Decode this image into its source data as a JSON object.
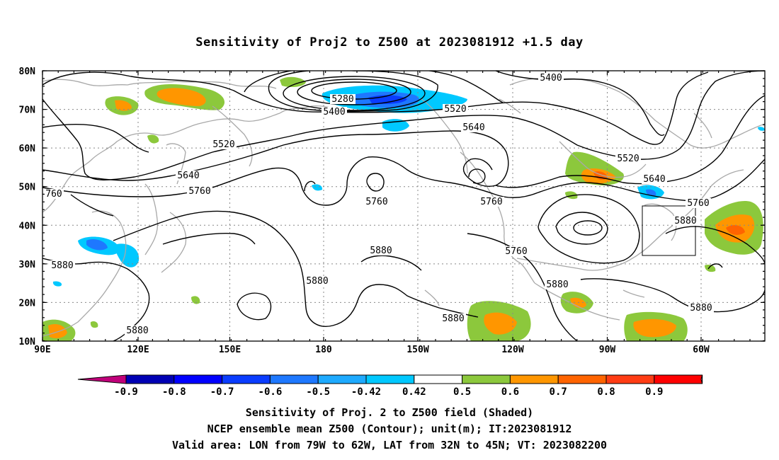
{
  "title": "Sensitivity of Proj2 to Z500 at 2023081912 +1.5 day",
  "map": {
    "lat_labels": [
      "80N",
      "70N",
      "60N",
      "50N",
      "40N",
      "30N",
      "20N",
      "10N"
    ],
    "lon_labels": [
      "90E",
      "120E",
      "150E",
      "180",
      "150W",
      "120W",
      "90W",
      "60W"
    ],
    "valid_box": {
      "lon": [
        -79,
        -62
      ],
      "lat": [
        32,
        45
      ]
    },
    "contour_labels": [
      "5280",
      "5400",
      "5400",
      "5520",
      "5520",
      "5520",
      "5640",
      "5640",
      "5640",
      "5760",
      "5760",
      "5760",
      "5760",
      "5760",
      "760",
      "5880",
      "5880",
      "5880",
      "5880",
      "5880",
      "5880",
      "5880",
      "5880"
    ]
  },
  "colorbar": {
    "ticks": [
      "-0.9",
      "-0.8",
      "-0.7",
      "-0.6",
      "-0.5",
      "-0.42",
      "0.42",
      "0.5",
      "0.6",
      "0.7",
      "0.8",
      "0.9"
    ],
    "colors": [
      "#c0007a",
      "#0000b4",
      "#0000ff",
      "#0a3cff",
      "#1e78ff",
      "#1eaaff",
      "#00c8ff",
      "#ffffff",
      "#8cc83c",
      "#ff9600",
      "#ff6400",
      "#ff3c14",
      "#ff0000",
      "#ff9ac8"
    ]
  },
  "captions": [
    "Sensitivity of Proj. 2 to Z500 field (Shaded)",
    "NCEP ensemble mean Z500 (Contour); unit(m); IT:2023081912",
    "Valid area: LON from 79W to 62W, LAT from 32N to 45N; VT: 2023082200"
  ]
}
